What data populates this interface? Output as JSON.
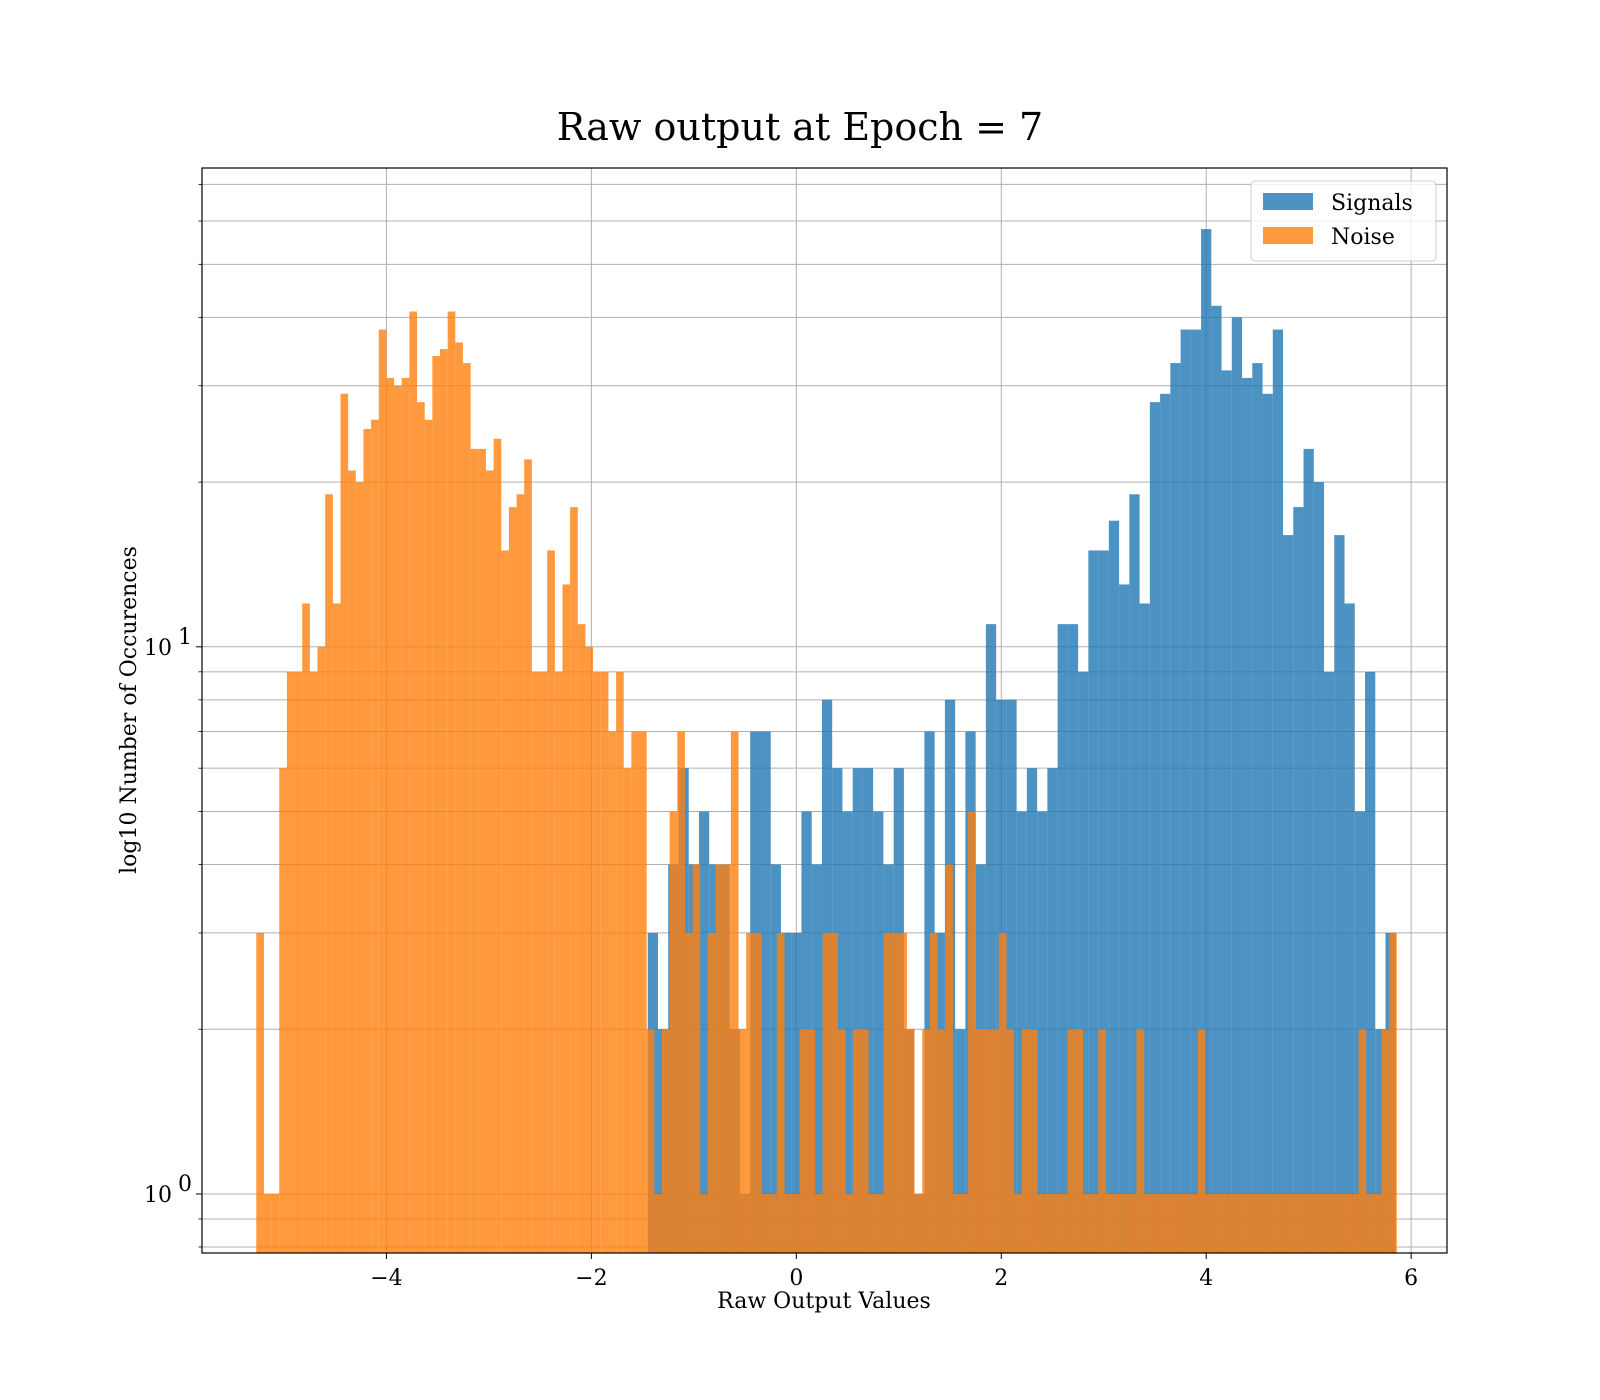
{
  "chart_data": {
    "type": "histogram",
    "title": "Raw output at Epoch = 7",
    "xlabel": "Raw Output Values",
    "ylabel": "log10 Number of Occurences",
    "yscale": "log",
    "xlim": [
      -5.8,
      6.35
    ],
    "ylim": [
      0.78,
      75
    ],
    "grid": true,
    "legend_position": "top-right",
    "x_ticks": [
      {
        "value": -4,
        "label": "−4"
      },
      {
        "value": -2,
        "label": "−2"
      },
      {
        "value": 0,
        "label": "0"
      },
      {
        "value": 2,
        "label": "2"
      },
      {
        "value": 4,
        "label": "4"
      },
      {
        "value": 6,
        "label": "6"
      }
    ],
    "y_ticks": [
      {
        "value": 1,
        "base": "10",
        "exp": "0"
      },
      {
        "value": 10,
        "base": "10",
        "exp": "1"
      }
    ],
    "series": [
      {
        "name": "Signals",
        "color": "#1f77b4",
        "opacity": 0.8,
        "bin_start": -1.45,
        "bin_width": 0.1,
        "counts": [
          3,
          2,
          4,
          6,
          4,
          5,
          4,
          4,
          2,
          1,
          7,
          7,
          4,
          3,
          3,
          5,
          4,
          8,
          6,
          5,
          6,
          6,
          5,
          4,
          6,
          2,
          1,
          7,
          3,
          8,
          2,
          7,
          4,
          11,
          8,
          8,
          5,
          6,
          5,
          6,
          11,
          11,
          9,
          15,
          15,
          17,
          13,
          19,
          12,
          28,
          29,
          33,
          38,
          38,
          58,
          42,
          32,
          40,
          31,
          33,
          29,
          38,
          16,
          18,
          23,
          20,
          9,
          16,
          12,
          5,
          9,
          2,
          3
        ]
      },
      {
        "name": "Noise",
        "color": "#ff7f0e",
        "opacity": 0.8,
        "bin_start": -5.27,
        "bin_width": 0.0747,
        "counts": [
          3,
          1,
          1,
          6,
          9,
          9,
          12,
          9,
          10,
          19,
          12,
          29,
          21,
          20,
          25,
          26,
          38,
          31,
          30,
          31,
          41,
          28,
          26,
          34,
          35,
          41,
          36,
          33,
          23,
          23,
          21,
          24,
          15,
          18,
          19,
          22,
          9,
          9,
          15,
          9,
          13,
          18,
          11,
          10,
          9,
          9,
          7,
          9,
          6,
          7,
          7,
          2,
          1,
          2,
          5,
          7,
          3,
          4,
          1,
          3,
          4,
          4,
          7,
          2,
          3,
          3,
          1,
          1,
          3,
          1,
          1,
          2,
          2,
          1,
          3,
          3,
          2,
          1,
          2,
          2,
          1,
          1,
          3,
          3,
          3,
          2,
          1,
          2,
          3,
          2,
          4,
          1,
          1,
          5,
          2,
          2,
          2,
          3,
          2,
          1,
          2,
          2,
          1,
          1,
          1,
          1,
          2,
          2,
          1,
          1,
          2,
          1,
          1,
          1,
          1,
          2,
          1,
          1,
          1,
          1,
          1,
          1,
          1,
          2,
          1,
          1,
          1,
          1,
          1,
          1,
          1,
          1,
          1,
          1,
          1,
          1,
          1,
          1,
          1,
          1,
          1,
          1,
          1,
          1,
          2,
          1,
          1,
          2,
          3
        ]
      }
    ]
  }
}
